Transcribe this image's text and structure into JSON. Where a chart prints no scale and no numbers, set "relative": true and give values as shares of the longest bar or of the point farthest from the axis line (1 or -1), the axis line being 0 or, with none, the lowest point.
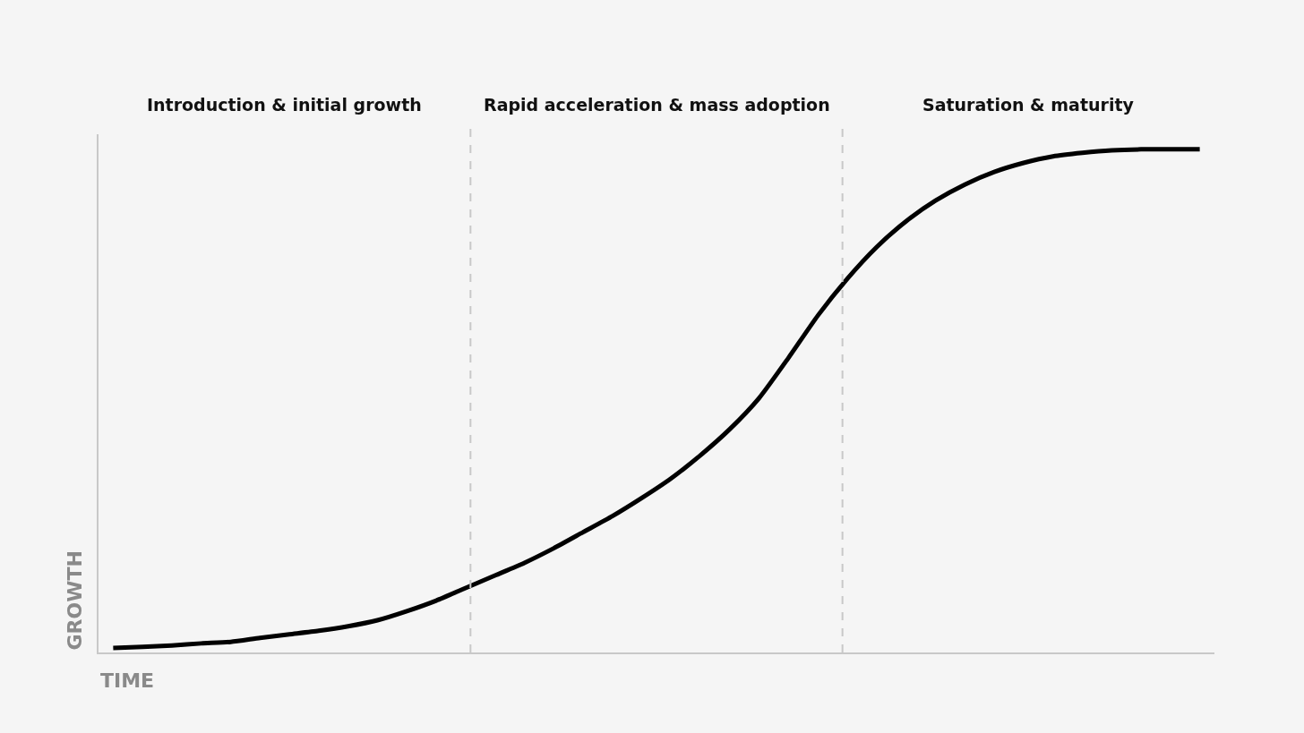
{
  "chart_data": {
    "type": "line",
    "relative": true,
    "xlabel": "TIME",
    "ylabel": "GROWTH",
    "categories": [
      null,
      null,
      null,
      null,
      null,
      null,
      null,
      null,
      null,
      null,
      null,
      null,
      null,
      null,
      null,
      null,
      null,
      null,
      null,
      null,
      null,
      null,
      null,
      null,
      null,
      null,
      null,
      null,
      null,
      null,
      null,
      null,
      null,
      null,
      null,
      null,
      null,
      null
    ],
    "series": [
      {
        "color": "#000000",
        "values": [
          0.009,
          0.011,
          0.014,
          0.018,
          0.021,
          0.029,
          0.036,
          0.043,
          0.052,
          0.064,
          0.082,
          0.103,
          0.128,
          0.153,
          0.178,
          0.207,
          0.239,
          0.271,
          0.307,
          0.346,
          0.392,
          0.444,
          0.506,
          0.586,
          0.67,
          0.743,
          0.806,
          0.857,
          0.898,
          0.93,
          0.955,
          0.973,
          0.986,
          0.993,
          0.998,
          1,
          1,
          1
        ]
      }
    ],
    "annotations": [
      "Introduction & initial growth",
      "Rapid acceleration & mass adoption",
      "Saturation & maturity"
    ],
    "grid": false,
    "marker": "none",
    "line_style": "solid"
  }
}
